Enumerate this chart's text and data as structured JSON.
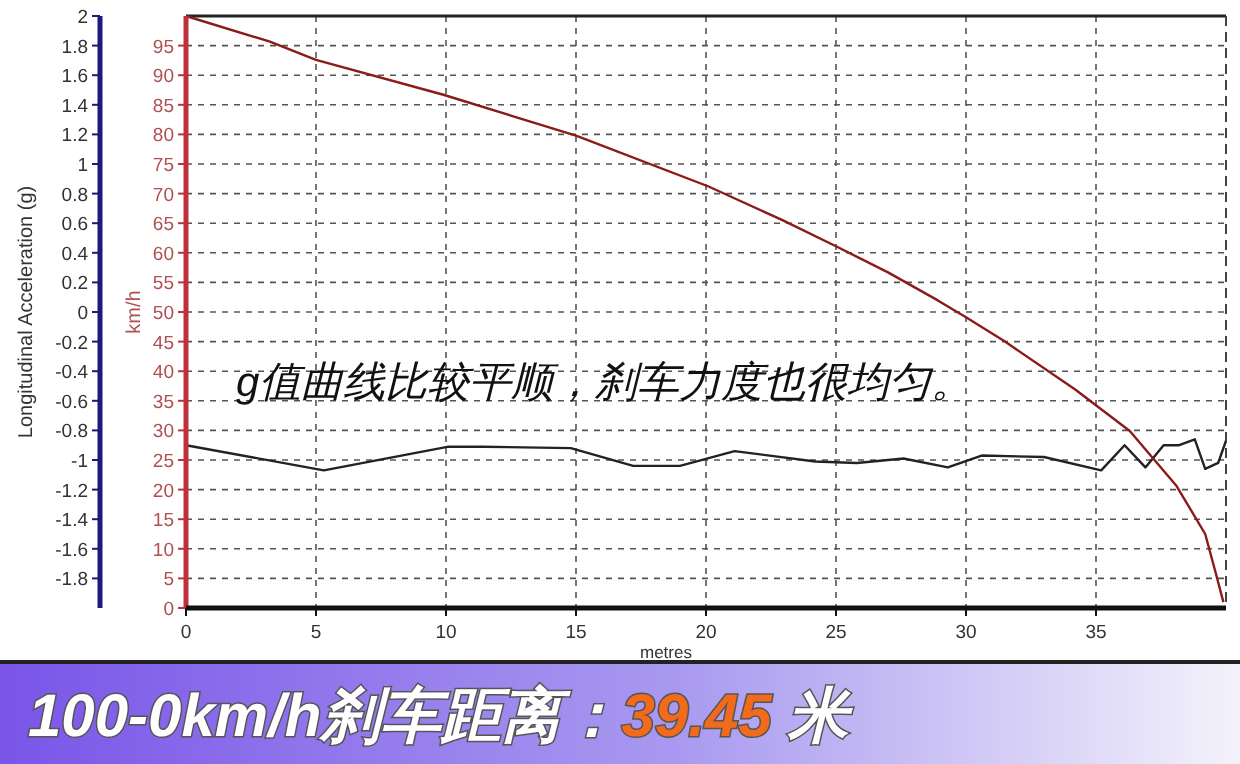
{
  "chart_data": {
    "type": "line",
    "xlabel": "metres",
    "ylabel": "Longitudinal Acceleration (g)",
    "y2label": "km/h",
    "annotations": [
      "g值曲线比较平顺，刹车力度也很均匀。",
      "100-0km/h刹车距离：39.45 米"
    ],
    "xlim": [
      0,
      40
    ],
    "xticks": [
      0,
      5,
      10,
      15,
      20,
      25,
      30,
      35
    ],
    "ylim": [
      -2,
      2
    ],
    "yticks": [
      -1.8,
      -1.6,
      -1.4,
      -1.2,
      -1,
      -0.8,
      -0.6,
      -0.4,
      -0.2,
      0,
      0.2,
      0.4,
      0.6,
      0.8,
      1,
      1.2,
      1.4,
      1.6,
      1.8,
      2
    ],
    "y2lim": [
      0,
      100
    ],
    "y2ticks": [
      0,
      5,
      10,
      15,
      20,
      25,
      30,
      35,
      40,
      45,
      50,
      55,
      60,
      65,
      70,
      75,
      80,
      85,
      90,
      95
    ],
    "grid": true,
    "line_style": "solid",
    "series": [
      {
        "color": "#222222",
        "axis": "y",
        "x": [
          0,
          5.3,
          10.1,
          11.4,
          14.8,
          17.2,
          19,
          21.1,
          24.2,
          25.8,
          27.6,
          29.3,
          30.6,
          33,
          35.2,
          36.1,
          36.9,
          37.6,
          38.2,
          38.8,
          39.2,
          39.7,
          40
        ],
        "values": [
          -0.9,
          -1.07,
          -0.91,
          -0.91,
          -0.92,
          -1.04,
          -1.04,
          -0.94,
          -1.01,
          -1.02,
          -0.99,
          -1.05,
          -0.97,
          -0.98,
          -1.07,
          -0.9,
          -1.05,
          -0.9,
          -0.9,
          -0.86,
          -1.06,
          -1.02,
          -0.87
        ]
      },
      {
        "color": "#8b1a1a",
        "axis": "y2",
        "x": [
          0,
          3.2,
          5,
          9.9,
          15,
          20.1,
          22.9,
          25,
          27,
          28.9,
          30,
          31.5,
          34.2,
          36.3,
          38.1,
          39.2,
          39.6,
          39.9
        ],
        "values": [
          100,
          95.7,
          92.6,
          86.7,
          79.8,
          71.2,
          65.6,
          61.1,
          56.7,
          52,
          49.1,
          45,
          36.9,
          29.9,
          20.6,
          12.5,
          6,
          1
        ]
      }
    ]
  }
}
